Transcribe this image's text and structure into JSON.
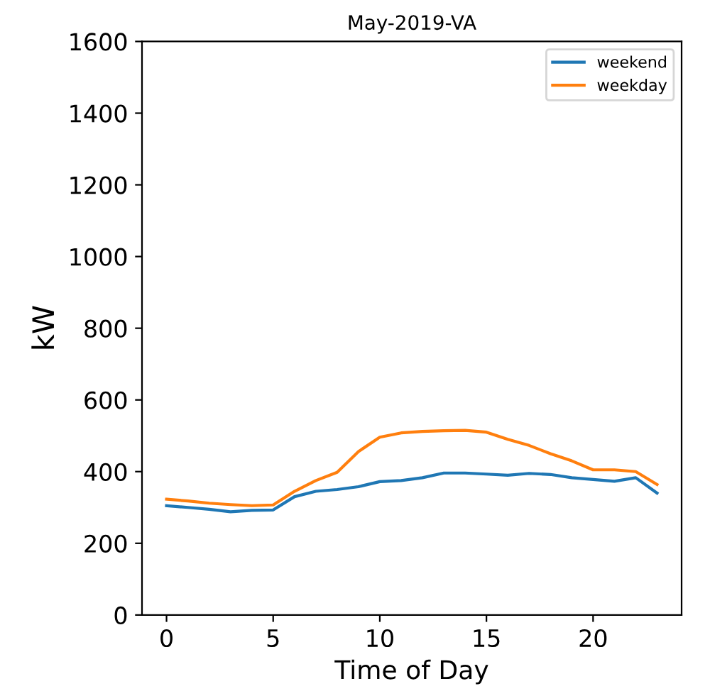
{
  "chart_data": {
    "type": "line",
    "title": "May-2019-VA",
    "xlabel": "Time of Day",
    "ylabel": "kW",
    "x": [
      0,
      1,
      2,
      3,
      4,
      5,
      6,
      7,
      8,
      9,
      10,
      11,
      12,
      13,
      14,
      15,
      16,
      17,
      18,
      19,
      20,
      21,
      22,
      23
    ],
    "series": [
      {
        "name": "weekend",
        "color": "#1f77b4",
        "values": [
          305,
          300,
          295,
          288,
          292,
          293,
          330,
          345,
          350,
          358,
          372,
          375,
          383,
          396,
          396,
          393,
          390,
          395,
          392,
          383,
          378,
          373,
          383,
          340
        ]
      },
      {
        "name": "weekday",
        "color": "#ff7f0e",
        "values": [
          323,
          318,
          312,
          308,
          305,
          307,
          345,
          375,
          398,
          456,
          496,
          508,
          512,
          514,
          515,
          510,
          490,
          473,
          450,
          430,
          405,
          405,
          400,
          364
        ]
      }
    ],
    "xlim": [
      -1.15,
      24.15
    ],
    "ylim": [
      0,
      1600
    ],
    "xticks": [
      0,
      5,
      10,
      15,
      20
    ],
    "yticks": [
      0,
      200,
      400,
      600,
      800,
      1000,
      1200,
      1400,
      1600
    ],
    "legend": "top right",
    "grid": false
  }
}
